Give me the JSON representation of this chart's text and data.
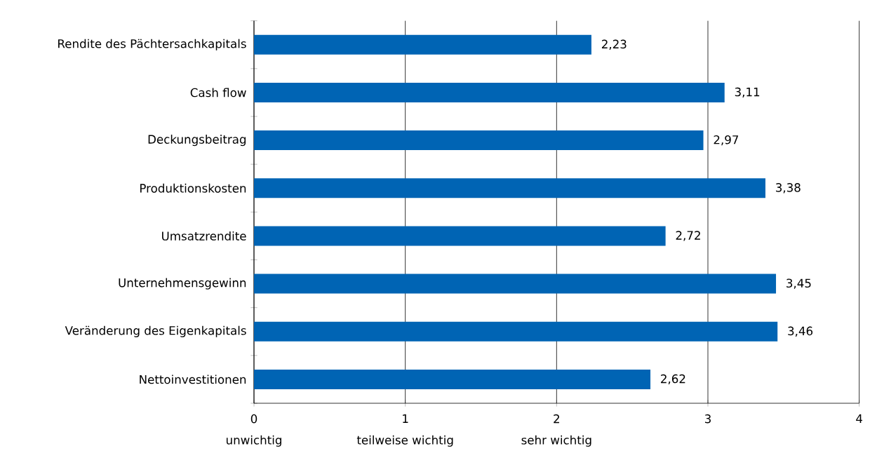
{
  "chart_data": {
    "type": "bar",
    "orientation": "horizontal",
    "categories": [
      "Rendite des Pächtersachkapitals",
      "Cash flow",
      "Deckungsbeitrag",
      "Produktionskosten",
      "Umsatzrendite",
      "Unternehmensgewinn",
      "Veränderung des Eigenkapitals",
      "Nettoinvestitionen"
    ],
    "values": [
      2.23,
      3.11,
      2.97,
      3.38,
      2.72,
      3.45,
      3.46,
      2.62
    ],
    "value_labels": [
      "2,23",
      "3,11",
      "2,97",
      "3,38",
      "2,72",
      "3,45",
      "3,46",
      "2,62"
    ],
    "color": "#0064b4",
    "xlim": [
      0,
      4
    ],
    "xticks": [
      0,
      1,
      2,
      3,
      4
    ],
    "grid": "x",
    "annotations": [
      "unwichtig",
      "teilweise wichtig",
      "sehr wichtig"
    ]
  }
}
